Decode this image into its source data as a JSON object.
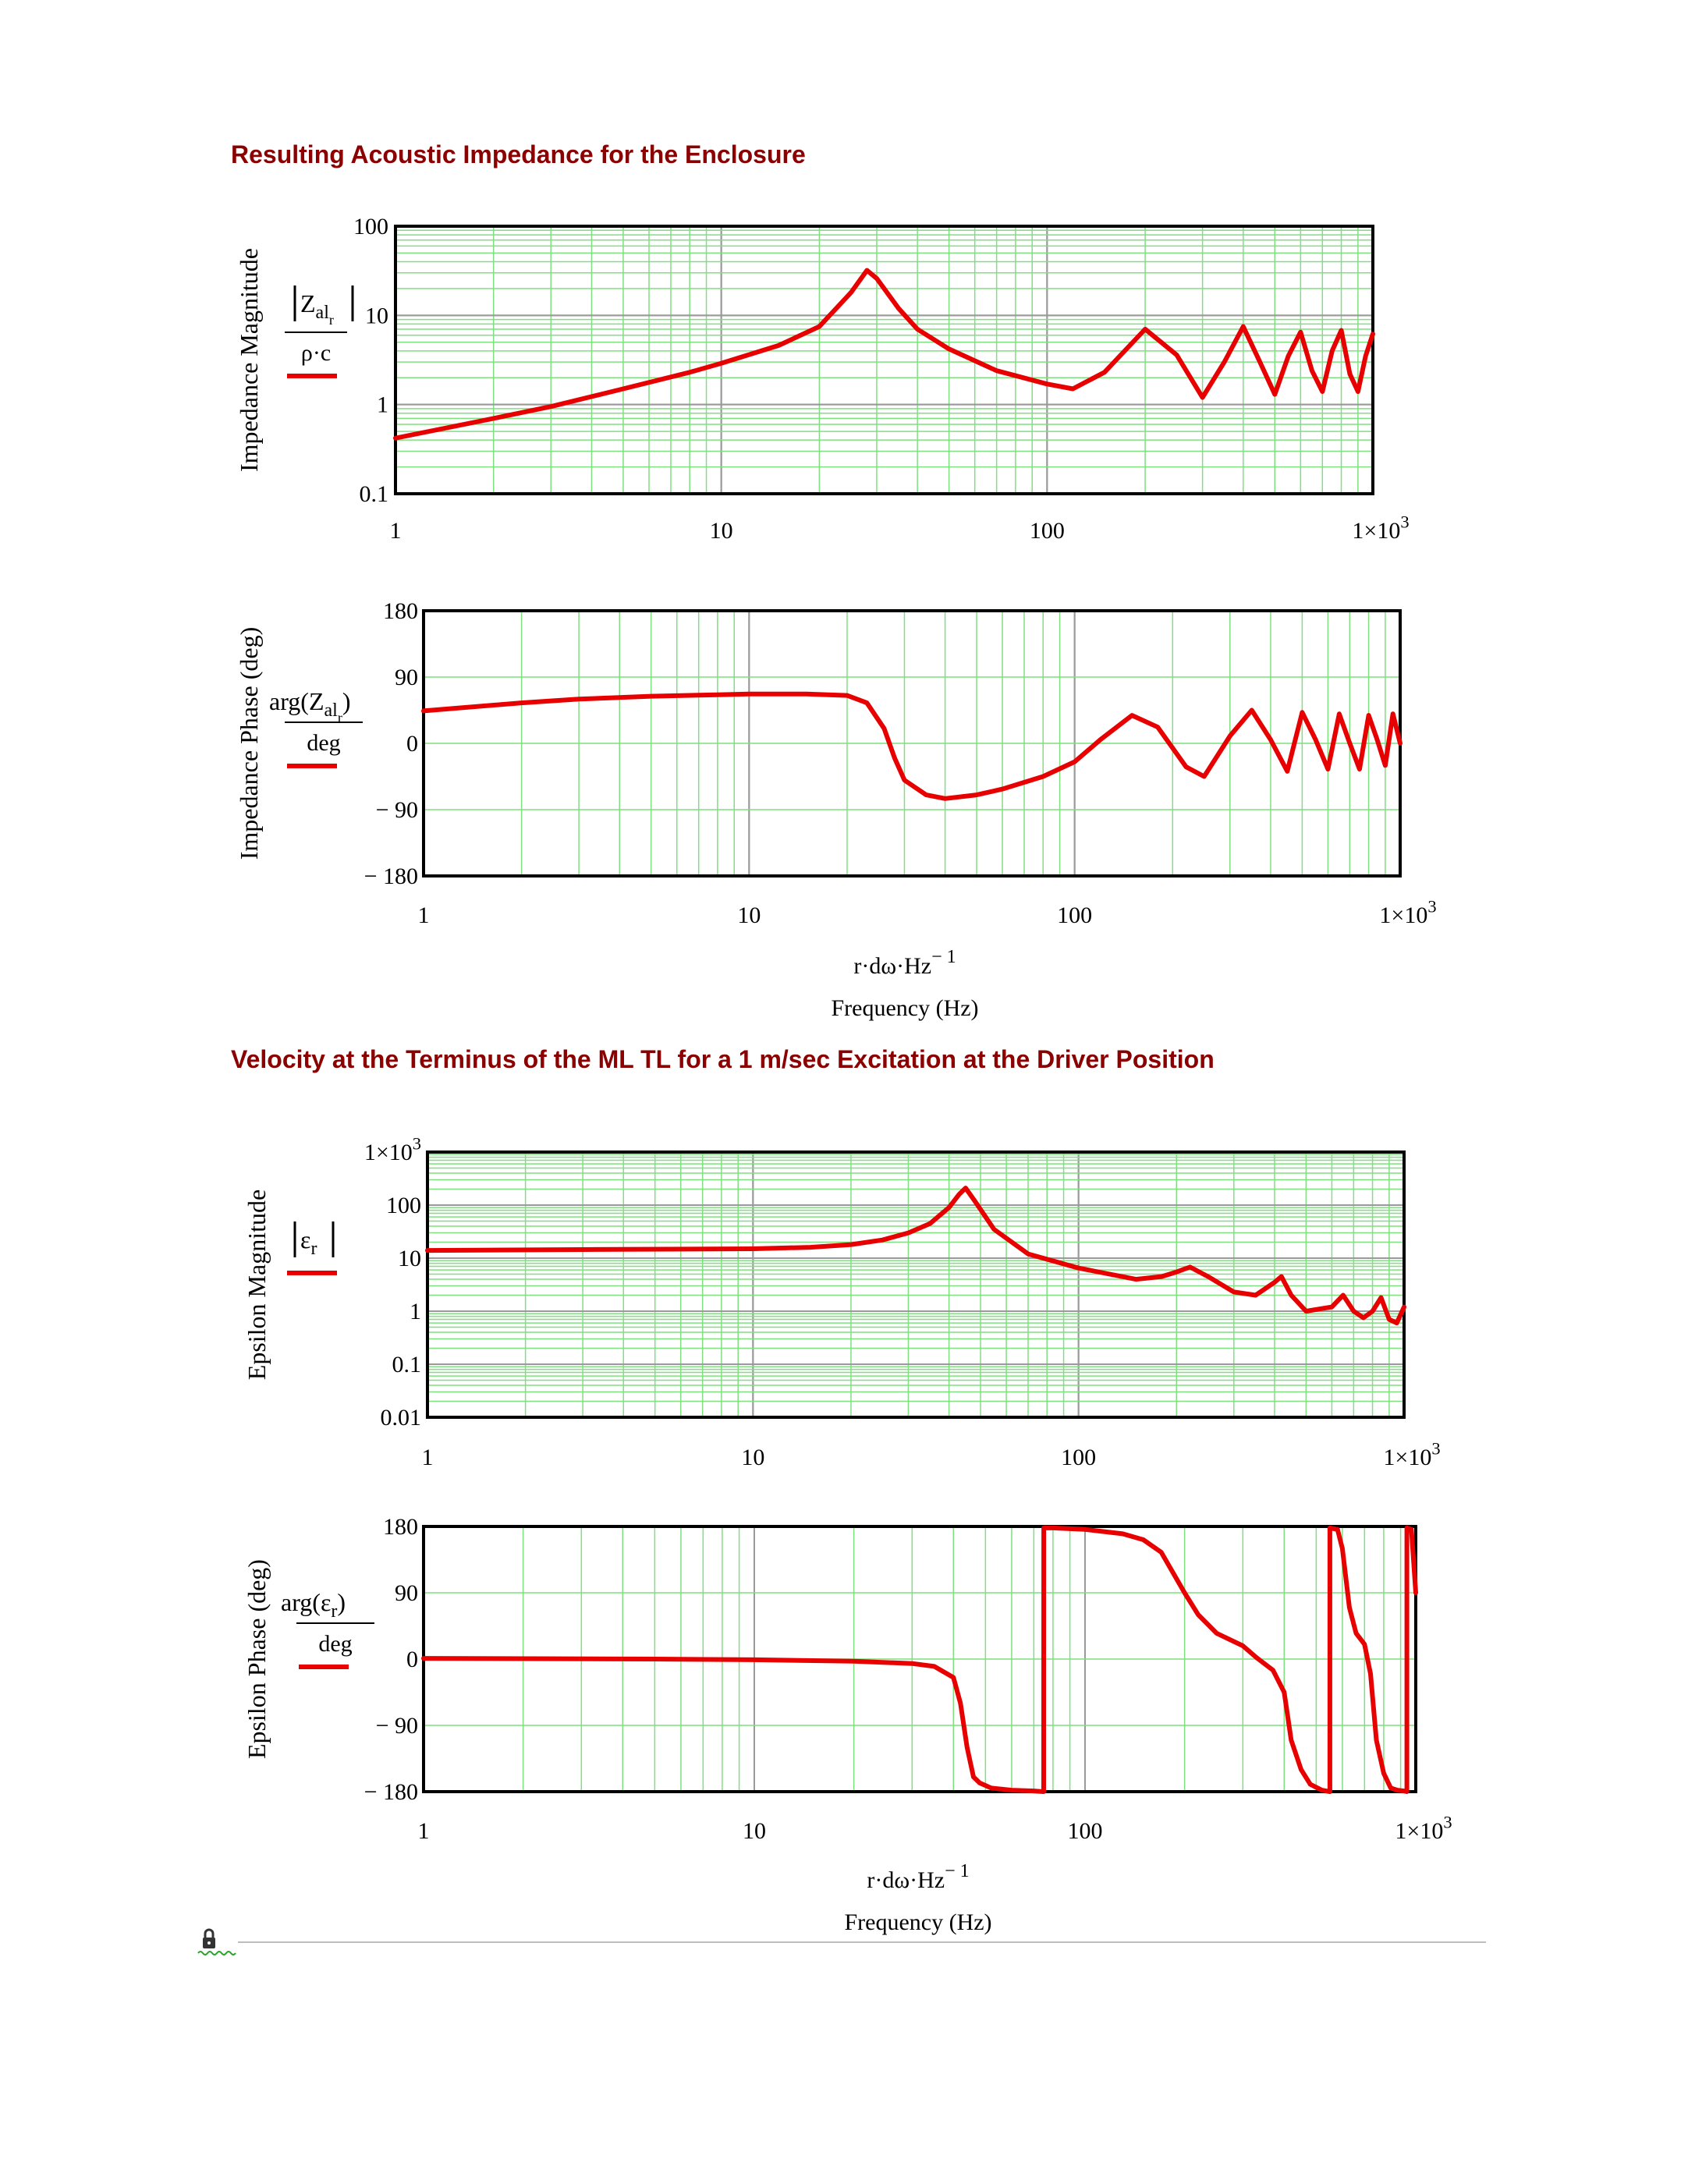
{
  "sections": [
    {
      "title": "Resulting Acoustic Impedance for the Enclosure"
    },
    {
      "title": "Velocity at the Terminus of the ML TL for a 1 m/sec Excitation at the Driver Position"
    }
  ],
  "colors": {
    "title": "#8b0000",
    "trace": "#e80000",
    "grid_minor": "#7fe07f",
    "grid_major": "#9a9a9a",
    "frame": "#000000"
  },
  "region_icon": "locked-region-icon",
  "chart_data": [
    {
      "type": "line",
      "title": "",
      "ylabel": "Impedance Magnitude",
      "legend_expr": {
        "bars": true,
        "base": "Z",
        "sub": "al",
        "subsub": "r",
        "denominator": "ρ·c"
      },
      "x_scale": "log",
      "y_scale": "log",
      "xlim": [
        1,
        1000
      ],
      "ylim": [
        0.1,
        100
      ],
      "xticks": [
        "1",
        "10",
        "100",
        "1×10³"
      ],
      "yticks": [
        "0.1",
        "1",
        "10",
        "100"
      ],
      "xlabel": "",
      "xlabel2": "",
      "series": [
        {
          "x": [
            1,
            2,
            3,
            5,
            8,
            10,
            15,
            20,
            25,
            28,
            30,
            35,
            40,
            50,
            70,
            100,
            120,
            150,
            200,
            250,
            300,
            350,
            400,
            450,
            500,
            550,
            600,
            650,
            700,
            750,
            800,
            850,
            900,
            950,
            1000
          ],
          "y": [
            0.42,
            0.7,
            0.95,
            1.5,
            2.3,
            2.9,
            4.6,
            7.5,
            18,
            32,
            26,
            12,
            7,
            4.2,
            2.4,
            1.7,
            1.5,
            2.3,
            7,
            3.6,
            1.2,
            3.0,
            7.5,
            3.0,
            1.3,
            3.5,
            6.5,
            2.4,
            1.4,
            4.0,
            6.8,
            2.2,
            1.4,
            3.5,
            6.2
          ]
        }
      ]
    },
    {
      "type": "line",
      "title": "",
      "ylabel": "Impedance Phase (deg)",
      "legend_expr": {
        "func": "arg",
        "base": "Z",
        "sub": "al",
        "subsub": "r",
        "denominator": "deg"
      },
      "x_scale": "log",
      "y_scale": "linear",
      "xlim": [
        1,
        1000
      ],
      "ylim": [
        -180,
        180
      ],
      "xticks": [
        "1",
        "10",
        "100",
        "1×10³"
      ],
      "yticks": [
        "− 180",
        "− 90",
        "0",
        "90",
        "180"
      ],
      "xlabel": "r·dω·Hz",
      "xlabel_sup": "− 1",
      "xlabel2": "Frequency (Hz)",
      "series": [
        {
          "x": [
            1,
            2,
            3,
            5,
            8,
            10,
            15,
            20,
            23,
            26,
            28,
            30,
            35,
            40,
            50,
            60,
            80,
            100,
            120,
            150,
            180,
            220,
            250,
            300,
            350,
            400,
            450,
            500,
            550,
            600,
            650,
            700,
            750,
            800,
            850,
            900,
            950,
            1000
          ],
          "y": [
            44,
            55,
            60,
            64,
            66,
            67,
            67,
            65,
            55,
            20,
            -20,
            -50,
            -70,
            -75,
            -70,
            -62,
            -45,
            -25,
            5,
            38,
            22,
            -32,
            -45,
            10,
            45,
            5,
            -38,
            42,
            5,
            -35,
            40,
            0,
            -35,
            38,
            5,
            -30,
            40,
            0
          ]
        }
      ]
    },
    {
      "type": "line",
      "title": "",
      "ylabel": "Epsilon Magnitude",
      "legend_expr": {
        "bars": true,
        "base": "ε",
        "sub": "r",
        "denominator": ""
      },
      "x_scale": "log",
      "y_scale": "log",
      "xlim": [
        1,
        1000
      ],
      "ylim": [
        0.01,
        1000
      ],
      "xticks": [
        "1",
        "10",
        "100",
        "1×10³"
      ],
      "yticks": [
        "0.01",
        "0.1",
        "1",
        "10",
        "100",
        "1×10³"
      ],
      "xlabel": "",
      "xlabel2": "",
      "series": [
        {
          "x": [
            1,
            3,
            10,
            15,
            20,
            25,
            30,
            35,
            40,
            43,
            45,
            48,
            55,
            70,
            100,
            150,
            180,
            200,
            220,
            250,
            300,
            350,
            400,
            420,
            450,
            500,
            600,
            650,
            700,
            750,
            800,
            850,
            900,
            950,
            1000
          ],
          "y": [
            14,
            14.5,
            15,
            16,
            18,
            22,
            30,
            45,
            90,
            160,
            210,
            120,
            35,
            12,
            6.5,
            4,
            4.5,
            5.5,
            6.8,
            4.5,
            2.3,
            2.0,
            3.5,
            4.5,
            2.0,
            1.0,
            1.2,
            2.0,
            1.0,
            0.75,
            1.0,
            1.8,
            0.7,
            0.6,
            1.2
          ]
        }
      ]
    },
    {
      "type": "line",
      "title": "",
      "ylabel": "Epsilon Phase (deg)",
      "legend_expr": {
        "func": "arg",
        "base": "ε",
        "sub": "r",
        "denominator": "deg"
      },
      "x_scale": "log",
      "y_scale": "linear",
      "xlim": [
        1,
        1000
      ],
      "ylim": [
        -180,
        180
      ],
      "xticks": [
        "1",
        "10",
        "100",
        "1×10³"
      ],
      "yticks": [
        "− 180",
        "− 90",
        "0",
        "90",
        "180"
      ],
      "xlabel": "r·dω·Hz",
      "xlabel_sup": "− 1",
      "xlabel2": "Frequency (Hz)",
      "series": [
        {
          "x": [
            1,
            5,
            10,
            20,
            30,
            35,
            40,
            42,
            44,
            46,
            48,
            52,
            60,
            70,
            75,
            75.01,
            80,
            100,
            130,
            150,
            170,
            200,
            220,
            250,
            300,
            330,
            370,
            400,
            420,
            450,
            480,
            520,
            550,
            550.01,
            580,
            600,
            630,
            660,
            700,
            730,
            760,
            800,
            840,
            880,
            920,
            940,
            940.01,
            970,
            1000
          ],
          "y": [
            1,
            0,
            -1,
            -3,
            -6,
            -10,
            -25,
            -60,
            -120,
            -160,
            -168,
            -175,
            -178,
            -179,
            -180,
            178,
            178,
            176,
            170,
            162,
            145,
            90,
            60,
            35,
            18,
            2,
            -15,
            -45,
            -110,
            -150,
            -170,
            -178,
            -180,
            178,
            176,
            150,
            70,
            35,
            20,
            -20,
            -110,
            -155,
            -175,
            -178,
            -179,
            -180,
            178,
            176,
            90
          ]
        }
      ]
    }
  ]
}
